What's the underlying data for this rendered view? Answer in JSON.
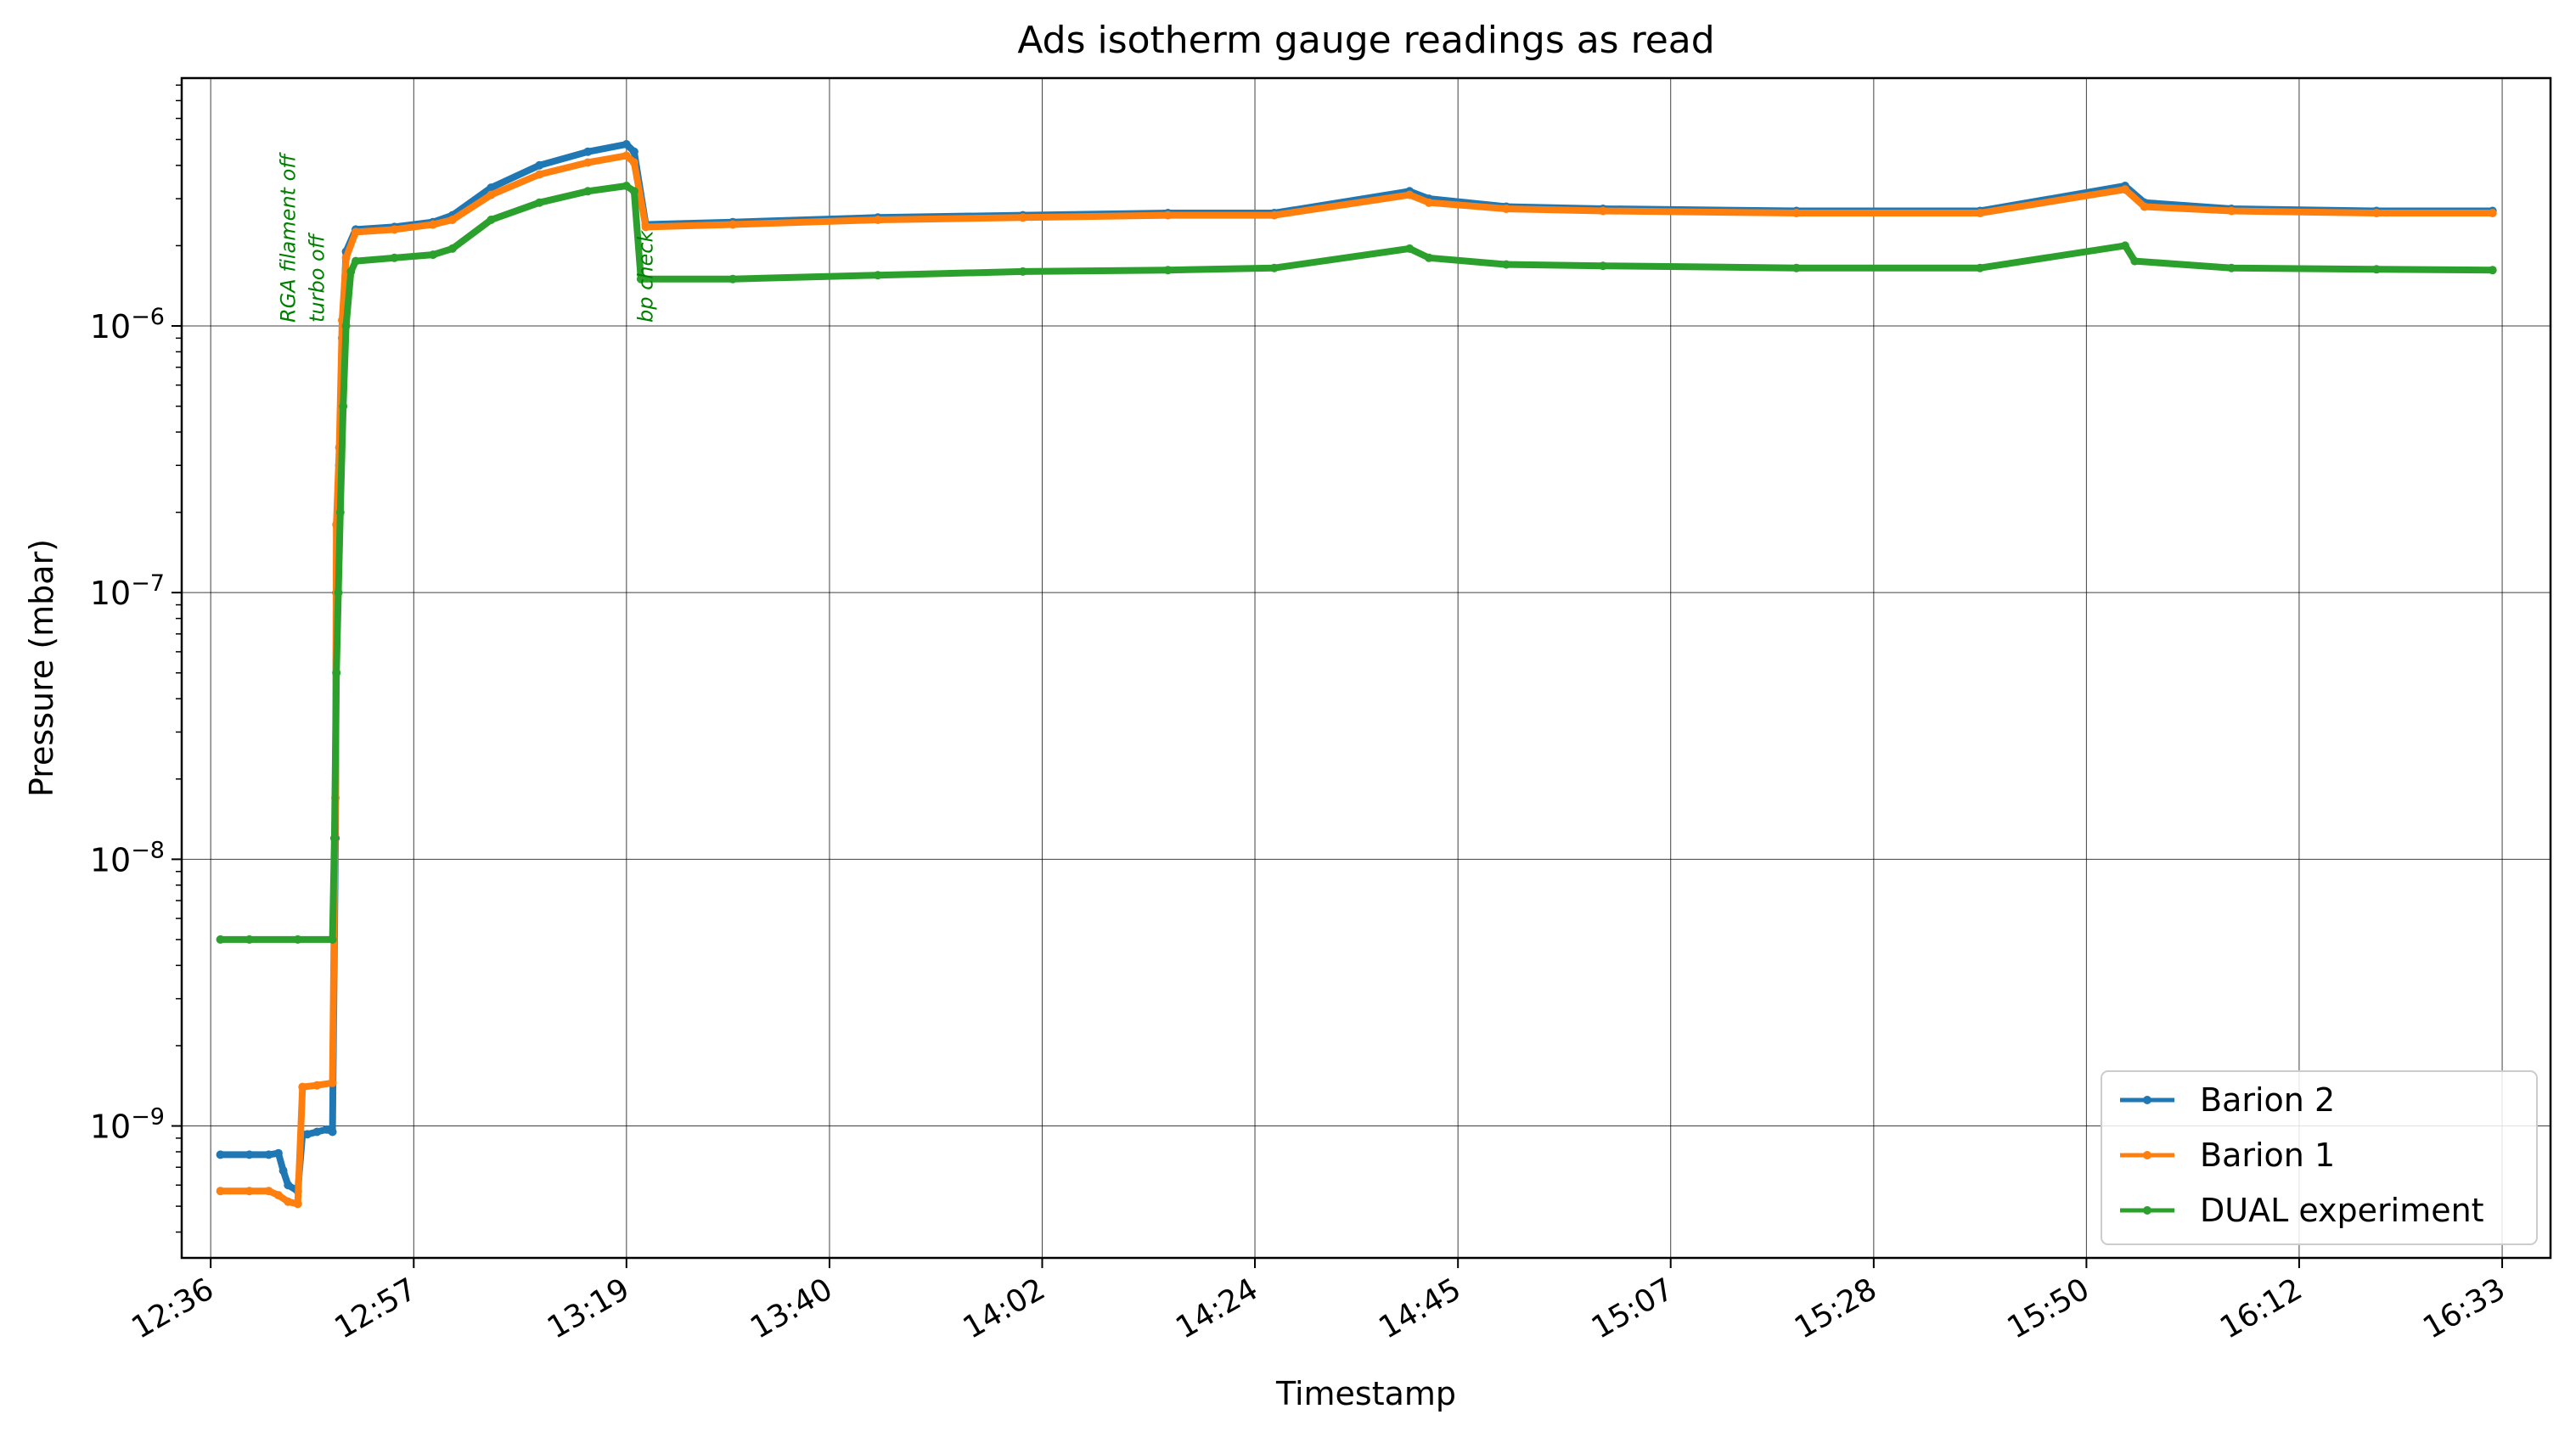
{
  "chart_data": {
    "type": "line",
    "title": "Ads isotherm gauge readings as read",
    "xlabel": "Timestamp",
    "ylabel": "Pressure (mbar)",
    "yscale": "log",
    "ylim": [
      3.2e-10,
      8.5e-06
    ],
    "xlim": [
      "12:33",
      "16:38"
    ],
    "grid": true,
    "legend_position": "bottom-right",
    "x_tick_labels": [
      "12:36",
      "12:57",
      "13:19",
      "13:40",
      "14:02",
      "14:24",
      "14:45",
      "15:07",
      "15:28",
      "15:50",
      "16:12",
      "16:33"
    ],
    "y_tick_labels": [
      {
        "value": 1e-09,
        "label": "10",
        "exp": "−9"
      },
      {
        "value": 1e-08,
        "label": "10",
        "exp": "−8"
      },
      {
        "value": 1e-07,
        "label": "10",
        "exp": "−7"
      },
      {
        "value": 1e-06,
        "label": "10",
        "exp": "−6"
      }
    ],
    "annotations": [
      {
        "text": "RGA filament off",
        "x": "12:44",
        "y": 1e-06
      },
      {
        "text": "turbo off",
        "x": "12:47",
        "y": 1e-06
      },
      {
        "text": "bp check",
        "x": "13:21",
        "y": 1e-06
      }
    ],
    "series": [
      {
        "name": "Barion 2",
        "color": "#1f77b4",
        "points": [
          [
            "12:37",
            7.8e-10
          ],
          [
            "12:40",
            7.8e-10
          ],
          [
            "12:42",
            7.8e-10
          ],
          [
            "12:43",
            7.9e-10
          ],
          [
            "12:43.5",
            6.8e-10
          ],
          [
            "12:44",
            6e-10
          ],
          [
            "12:45",
            5.7e-10
          ],
          [
            "12:45.5",
            9.3e-10
          ],
          [
            "12:46",
            9.3e-10
          ],
          [
            "12:47",
            9.5e-10
          ],
          [
            "12:48",
            9.7e-10
          ],
          [
            "12:48.6",
            9.5e-10
          ],
          [
            "12:48.9",
            1.2e-08
          ],
          [
            "12:49",
            1e-07
          ],
          [
            "12:49.3",
            3e-07
          ],
          [
            "12:49.6",
            9e-07
          ],
          [
            "12:50",
            1.9e-06
          ],
          [
            "12:51",
            2.3e-06
          ],
          [
            "12:55",
            2.35e-06
          ],
          [
            "12:59",
            2.45e-06
          ],
          [
            "13:01",
            2.6e-06
          ],
          [
            "13:05",
            3.3e-06
          ],
          [
            "13:10",
            4e-06
          ],
          [
            "13:15",
            4.5e-06
          ],
          [
            "13:19",
            4.8e-06
          ],
          [
            "13:19.8",
            4.5e-06
          ],
          [
            "13:21",
            2.4e-06
          ],
          [
            "13:30",
            2.45e-06
          ],
          [
            "13:45",
            2.55e-06
          ],
          [
            "14:00",
            2.6e-06
          ],
          [
            "14:15",
            2.65e-06
          ],
          [
            "14:26",
            2.65e-06
          ],
          [
            "14:40",
            3.2e-06
          ],
          [
            "14:42",
            3e-06
          ],
          [
            "14:50",
            2.8e-06
          ],
          [
            "15:00",
            2.75e-06
          ],
          [
            "15:20",
            2.7e-06
          ],
          [
            "15:39",
            2.7e-06
          ],
          [
            "15:54",
            3.35e-06
          ],
          [
            "15:56",
            2.9e-06
          ],
          [
            "16:05",
            2.75e-06
          ],
          [
            "16:20",
            2.7e-06
          ],
          [
            "16:32",
            2.7e-06
          ]
        ]
      },
      {
        "name": "Barion 1",
        "color": "#ff7f0e",
        "points": [
          [
            "12:37",
            5.7e-10
          ],
          [
            "12:40",
            5.7e-10
          ],
          [
            "12:42",
            5.7e-10
          ],
          [
            "12:43",
            5.5e-10
          ],
          [
            "12:44",
            5.2e-10
          ],
          [
            "12:45",
            5.1e-10
          ],
          [
            "12:45.5",
            1.4e-09
          ],
          [
            "12:47",
            1.42e-09
          ],
          [
            "12:48.6",
            1.45e-09
          ],
          [
            "12:48.9",
            1.7e-08
          ],
          [
            "12:49",
            1.8e-07
          ],
          [
            "12:49.3",
            3.5e-07
          ],
          [
            "12:49.6",
            1.05e-06
          ],
          [
            "12:50",
            1.8e-06
          ],
          [
            "12:51",
            2.25e-06
          ],
          [
            "12:55",
            2.3e-06
          ],
          [
            "12:59",
            2.4e-06
          ],
          [
            "13:01",
            2.5e-06
          ],
          [
            "13:05",
            3.1e-06
          ],
          [
            "13:10",
            3.7e-06
          ],
          [
            "13:15",
            4.1e-06
          ],
          [
            "13:19",
            4.35e-06
          ],
          [
            "13:19.8",
            4.1e-06
          ],
          [
            "13:21",
            2.35e-06
          ],
          [
            "13:30",
            2.4e-06
          ],
          [
            "13:45",
            2.5e-06
          ],
          [
            "14:00",
            2.55e-06
          ],
          [
            "14:15",
            2.6e-06
          ],
          [
            "14:26",
            2.6e-06
          ],
          [
            "14:40",
            3.1e-06
          ],
          [
            "14:42",
            2.9e-06
          ],
          [
            "14:50",
            2.75e-06
          ],
          [
            "15:00",
            2.7e-06
          ],
          [
            "15:20",
            2.65e-06
          ],
          [
            "15:39",
            2.65e-06
          ],
          [
            "15:54",
            3.25e-06
          ],
          [
            "15:56",
            2.8e-06
          ],
          [
            "16:05",
            2.7e-06
          ],
          [
            "16:20",
            2.65e-06
          ],
          [
            "16:32",
            2.65e-06
          ]
        ]
      },
      {
        "name": "DUAL experiment",
        "color": "#2ca02c",
        "points": [
          [
            "12:37",
            5e-09
          ],
          [
            "12:40",
            5e-09
          ],
          [
            "12:45",
            5e-09
          ],
          [
            "12:48.6",
            5e-09
          ],
          [
            "12:48.8",
            1.2e-08
          ],
          [
            "12:49",
            5e-08
          ],
          [
            "12:49.2",
            1e-07
          ],
          [
            "12:49.4",
            2e-07
          ],
          [
            "12:49.7",
            5e-07
          ],
          [
            "12:50",
            1e-06
          ],
          [
            "12:50.5",
            1.6e-06
          ],
          [
            "12:51",
            1.75e-06
          ],
          [
            "12:55",
            1.8e-06
          ],
          [
            "12:59",
            1.85e-06
          ],
          [
            "13:01",
            1.95e-06
          ],
          [
            "13:05",
            2.5e-06
          ],
          [
            "13:10",
            2.9e-06
          ],
          [
            "13:15",
            3.2e-06
          ],
          [
            "13:19",
            3.35e-06
          ],
          [
            "13:19.8",
            3.2e-06
          ],
          [
            "13:20.5",
            1.5e-06
          ],
          [
            "13:30",
            1.5e-06
          ],
          [
            "13:45",
            1.55e-06
          ],
          [
            "14:00",
            1.6e-06
          ],
          [
            "14:15",
            1.62e-06
          ],
          [
            "14:26",
            1.65e-06
          ],
          [
            "14:40",
            1.95e-06
          ],
          [
            "14:42",
            1.8e-06
          ],
          [
            "14:50",
            1.7e-06
          ],
          [
            "15:00",
            1.68e-06
          ],
          [
            "15:20",
            1.65e-06
          ],
          [
            "15:39",
            1.65e-06
          ],
          [
            "15:54",
            2e-06
          ],
          [
            "15:55",
            1.75e-06
          ],
          [
            "16:05",
            1.65e-06
          ],
          [
            "16:20",
            1.63e-06
          ],
          [
            "16:32",
            1.62e-06
          ]
        ]
      }
    ]
  }
}
